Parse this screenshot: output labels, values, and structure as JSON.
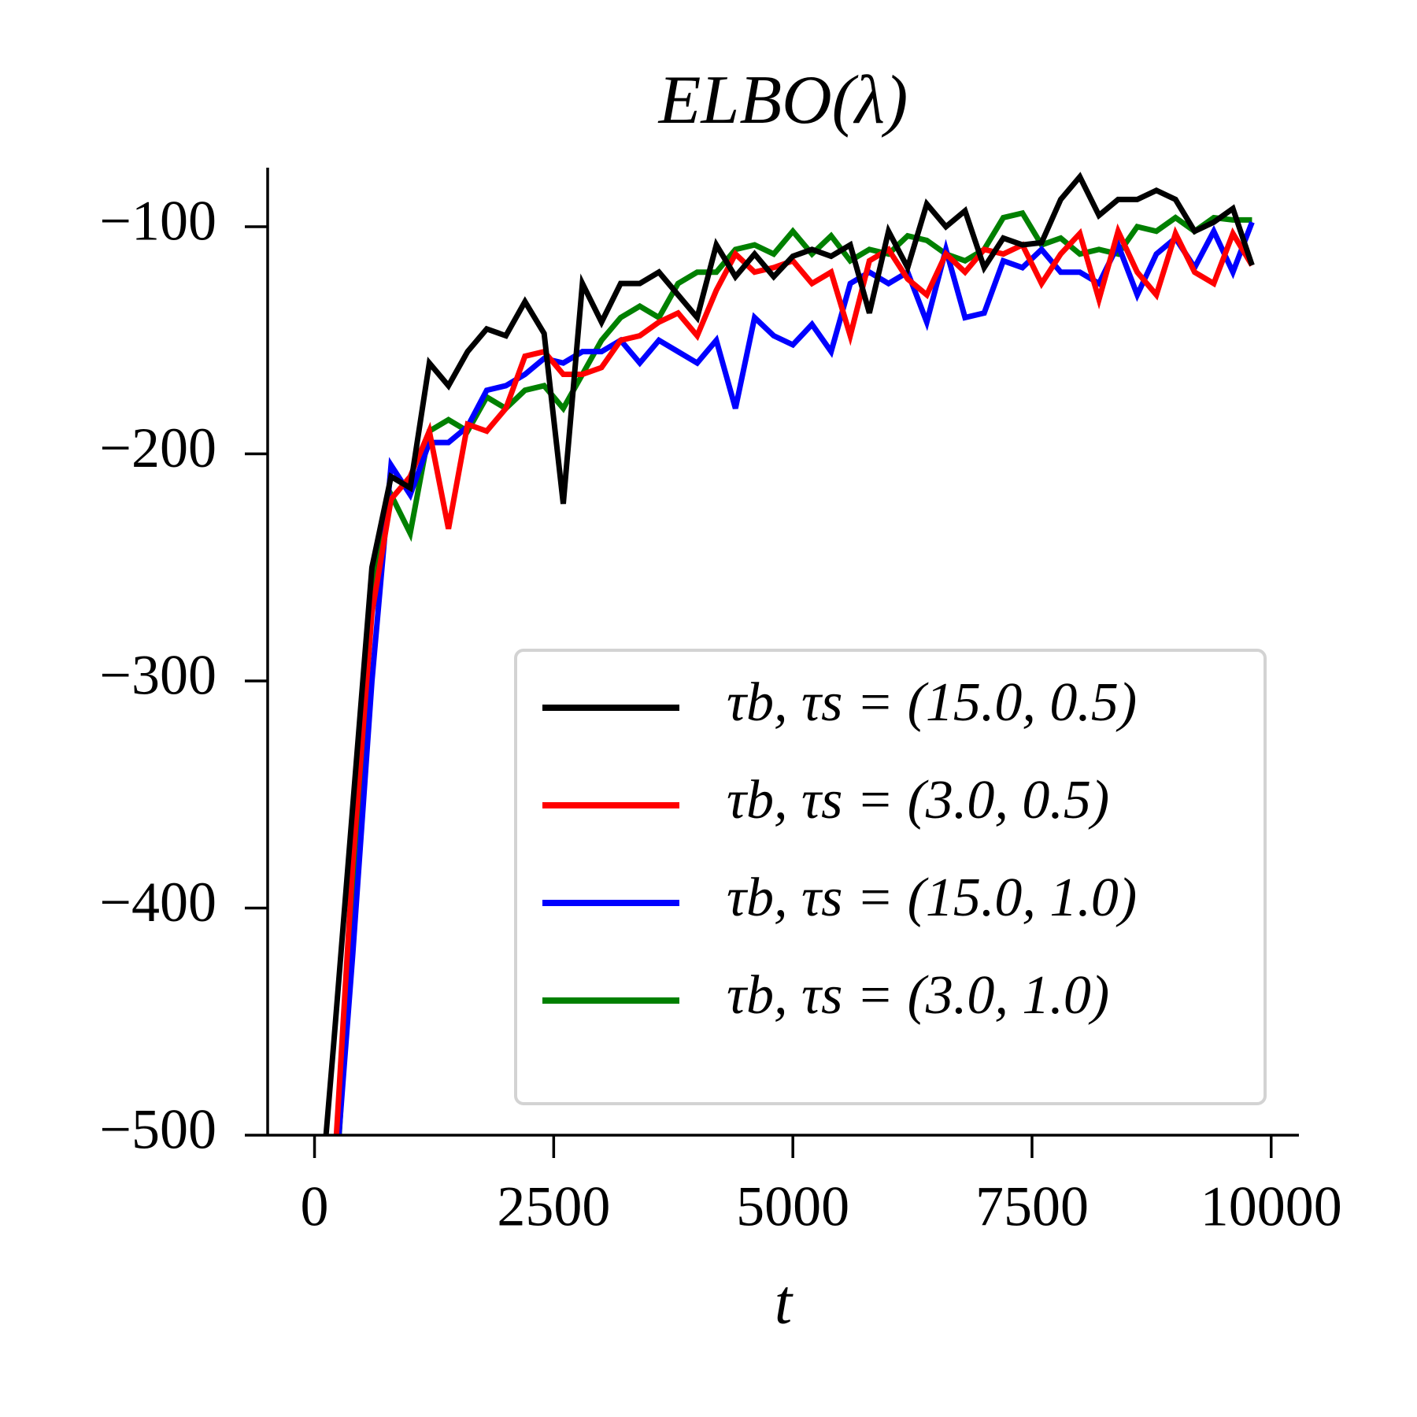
{
  "chart_data": {
    "type": "line",
    "title": "ELBO(λ)",
    "x_label": "t",
    "x": [
      0,
      200,
      400,
      600,
      800,
      1000,
      1200,
      1400,
      1600,
      1800,
      2000,
      2200,
      2400,
      2600,
      2800,
      3000,
      3200,
      3400,
      3600,
      3800,
      4000,
      4200,
      4400,
      4600,
      4800,
      5000,
      5200,
      5400,
      5600,
      5800,
      6000,
      6200,
      6400,
      6600,
      6800,
      7000,
      7200,
      7400,
      7600,
      7800,
      8000,
      8200,
      8400,
      8600,
      8800,
      9000,
      9200,
      9400,
      9600,
      9800
    ],
    "series": [
      {
        "name": "τb, τs = (15.0, 0.5)",
        "color": "#000000",
        "values": [
          -560,
          -460,
          -355,
          -250,
          -210,
          -215,
          -160,
          -170,
          -155,
          -145,
          -148,
          -133,
          -147,
          -222,
          -125,
          -142,
          -125,
          -125,
          -120,
          -130,
          -140,
          -108,
          -122,
          -112,
          -122,
          -113,
          -110,
          -113,
          -108,
          -138,
          -102,
          -118,
          -90,
          -100,
          -93,
          -118,
          -105,
          -108,
          -107,
          -88,
          -78,
          -95,
          -88,
          -88,
          -84,
          -88,
          -102,
          -98,
          -92,
          -117
        ]
      },
      {
        "name": "τb, τs = (3.0, 0.5)",
        "color": "#ff0000",
        "values": [
          -600,
          -520,
          -380,
          -270,
          -220,
          -210,
          -190,
          -233,
          -187,
          -190,
          -180,
          -157,
          -155,
          -165,
          -165,
          -162,
          -150,
          -148,
          -142,
          -138,
          -148,
          -128,
          -112,
          -120,
          -118,
          -115,
          -125,
          -120,
          -148,
          -115,
          -110,
          -123,
          -130,
          -112,
          -120,
          -110,
          -112,
          -108,
          -125,
          -112,
          -103,
          -132,
          -102,
          -120,
          -130,
          -103,
          -120,
          -125,
          -103,
          -117
        ]
      },
      {
        "name": "τb, τs = (15.0, 1.0)",
        "color": "#0000ff",
        "values": [
          -620,
          -530,
          -420,
          -300,
          -205,
          -218,
          -195,
          -195,
          -188,
          -172,
          -170,
          -165,
          -158,
          -160,
          -155,
          -155,
          -150,
          -160,
          -150,
          -155,
          -160,
          -150,
          -180,
          -140,
          -148,
          -152,
          -143,
          -155,
          -125,
          -120,
          -125,
          -120,
          -142,
          -110,
          -140,
          -138,
          -115,
          -118,
          -110,
          -120,
          -120,
          -125,
          -108,
          -130,
          -112,
          -105,
          -118,
          -102,
          -120,
          -98
        ]
      },
      {
        "name": "τb, τs = (3.0, 1.0)",
        "color": "#008000",
        "values": [
          -640,
          -540,
          -400,
          -260,
          -218,
          -235,
          -190,
          -185,
          -190,
          -175,
          -180,
          -172,
          -170,
          -180,
          -165,
          -150,
          -140,
          -135,
          -140,
          -125,
          -120,
          -120,
          -110,
          -108,
          -112,
          -102,
          -112,
          -104,
          -115,
          -110,
          -112,
          -104,
          -106,
          -112,
          -115,
          -110,
          -96,
          -94,
          -108,
          -105,
          -112,
          -110,
          -112,
          -100,
          -102,
          -96,
          -102,
          -96,
          -97,
          -97
        ]
      }
    ],
    "xlim": [
      -490,
      10290
    ],
    "xticks": [
      0,
      2500,
      5000,
      7500,
      10000
    ],
    "ylim": [
      -500,
      -74
    ],
    "yticks": [
      {
        "value": -500,
        "label": "−500"
      },
      {
        "value": -400,
        "label": "−400"
      },
      {
        "value": -300,
        "label": "−300"
      },
      {
        "value": -200,
        "label": "−200"
      },
      {
        "value": -100,
        "label": "−100"
      }
    ],
    "legend": "lower right",
    "grid": false
  }
}
